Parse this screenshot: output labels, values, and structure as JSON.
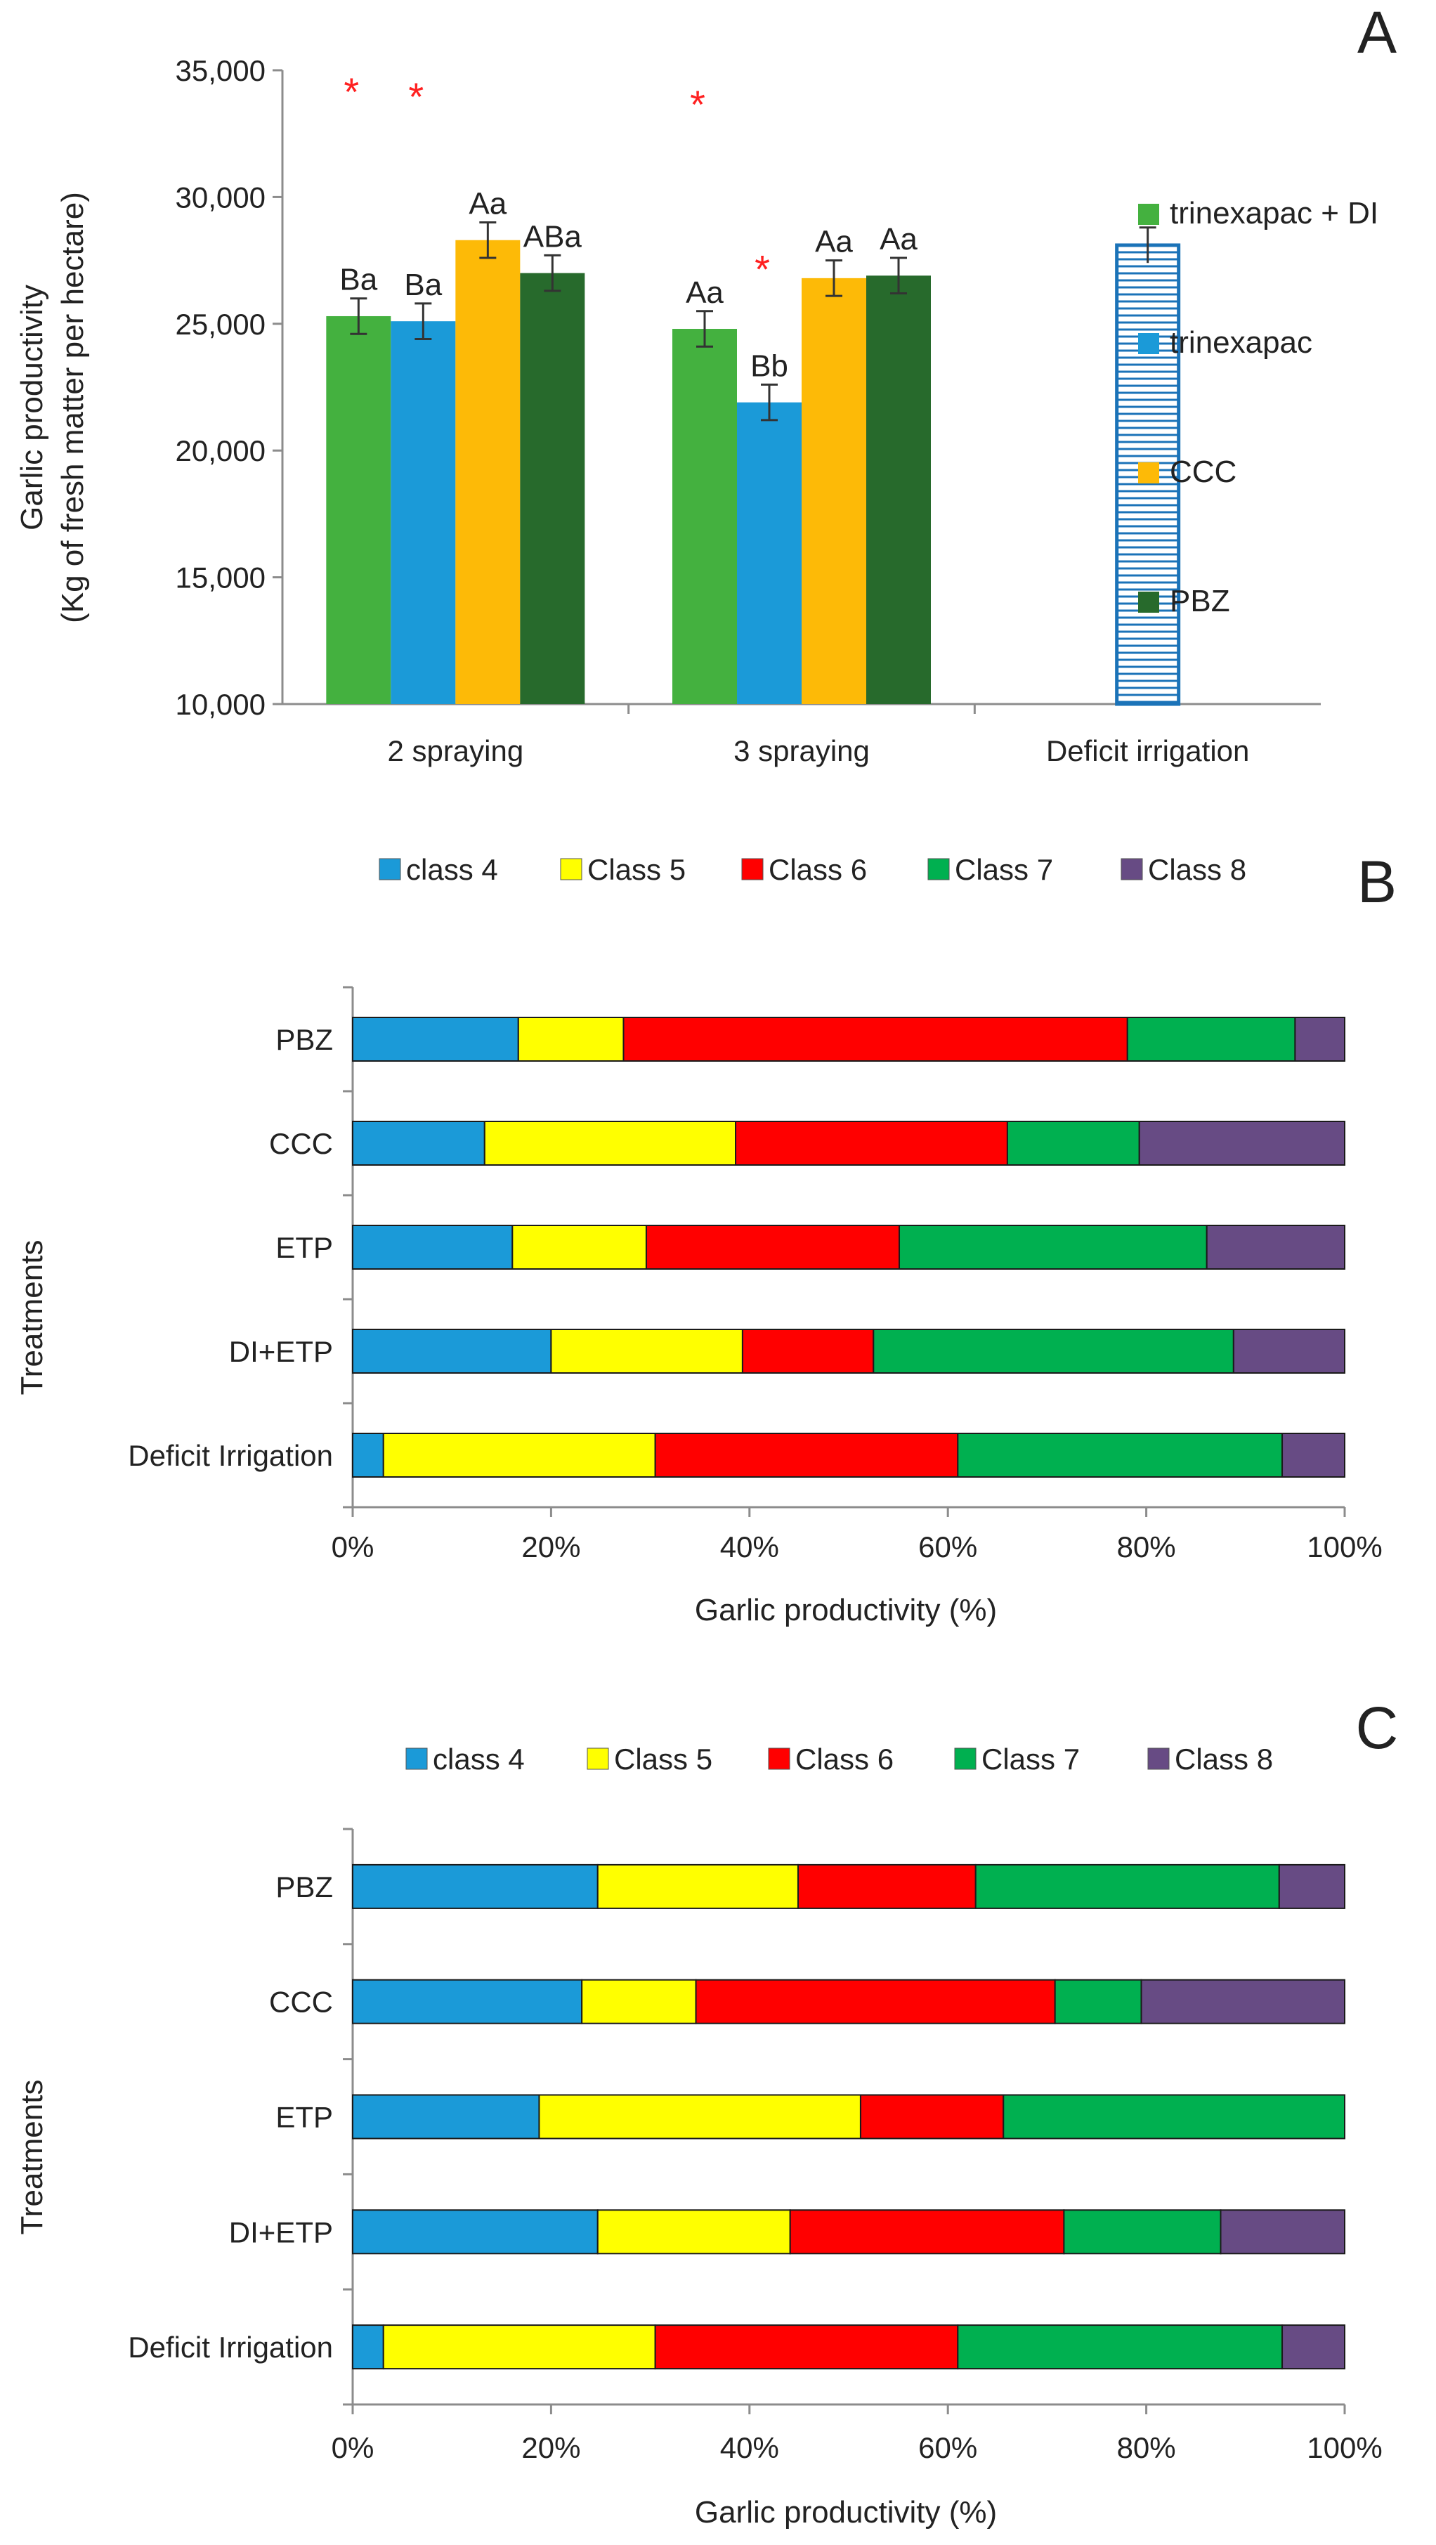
{
  "chart_data": [
    {
      "panel": "A",
      "type": "bar",
      "ylabel": "Garlic productivity",
      "ylabel2": "(Kg of fresh matter per hectare)",
      "ylim": [
        10000,
        35000
      ],
      "yticks": [
        "10,000",
        "15,000",
        "20,000",
        "25,000",
        "30,000",
        "35,000"
      ],
      "categories": [
        "2 spraying",
        "3 spraying",
        "Deficit irrigation"
      ],
      "legend_position": "right",
      "series": [
        {
          "name": "trinexapac + DI",
          "color": "#44B13F",
          "values": [
            25300,
            24800,
            null
          ],
          "errors": [
            700,
            700,
            null
          ],
          "letters": [
            "Ba",
            "Aa",
            ""
          ],
          "star": [
            true,
            true,
            false
          ]
        },
        {
          "name": "trinexapac",
          "color": "#1B9AD8",
          "values": [
            25100,
            21900,
            null
          ],
          "errors": [
            700,
            700,
            null
          ],
          "letters": [
            "Ba",
            "Bb",
            ""
          ],
          "star": [
            true,
            true,
            false
          ]
        },
        {
          "name": "CCC",
          "color": "#FDBA07",
          "values": [
            28300,
            26800,
            null
          ],
          "errors": [
            700,
            700,
            null
          ],
          "letters": [
            "Aa",
            "Aa",
            ""
          ],
          "star": [
            false,
            false,
            false
          ]
        },
        {
          "name": "PBZ",
          "color": "#276A2C",
          "values": [
            27000,
            26900,
            null
          ],
          "errors": [
            700,
            700,
            null
          ],
          "letters": [
            "ABa",
            "Aa",
            ""
          ],
          "star": [
            false,
            false,
            false
          ]
        }
      ],
      "deficit": {
        "value": 28100,
        "error": 700,
        "color": "#1B73B8"
      },
      "star_symbol": "*"
    },
    {
      "panel": "B",
      "type": "bar",
      "orientation": "horizontal",
      "stacked": "percent",
      "xlabel": "Garlic productivity (%)",
      "ylabel": "Treatments",
      "xticks": [
        "0%",
        "20%",
        "40%",
        "60%",
        "80%",
        "100%"
      ],
      "legend_position": "top",
      "categories": [
        "PBZ",
        "CCC",
        "ETP",
        "DI+ETP",
        "Deficit Irrigation"
      ],
      "series": [
        {
          "name": "class 4",
          "color": "#1B9AD8",
          "values": [
            16.7,
            13.3,
            16.1,
            20.0,
            3.1
          ]
        },
        {
          "name": "Class 5",
          "color": "#FFFF00",
          "values": [
            10.6,
            25.3,
            13.5,
            19.3,
            27.4
          ]
        },
        {
          "name": "Class 6",
          "color": "#FF0000",
          "values": [
            50.8,
            27.4,
            25.5,
            13.2,
            30.5
          ]
        },
        {
          "name": "Class 7",
          "color": "#00B050",
          "values": [
            16.9,
            13.3,
            31.0,
            36.3,
            32.7
          ]
        },
        {
          "name": "Class 8",
          "color": "#674B84",
          "values": [
            5.0,
            20.7,
            13.9,
            11.2,
            6.3
          ]
        }
      ]
    },
    {
      "panel": "C",
      "type": "bar",
      "orientation": "horizontal",
      "stacked": "percent",
      "xlabel": "Garlic productivity (%)",
      "ylabel": "Treatments",
      "xticks": [
        "0%",
        "20%",
        "40%",
        "60%",
        "80%",
        "100%"
      ],
      "legend_position": "top",
      "categories": [
        "PBZ",
        "CCC",
        "ETP",
        "DI+ETP",
        "Deficit Irrigation"
      ],
      "series": [
        {
          "name": "class 4",
          "color": "#1B9AD8",
          "values": [
            24.7,
            23.1,
            18.8,
            24.7,
            3.1
          ]
        },
        {
          "name": "Class 5",
          "color": "#FFFF00",
          "values": [
            20.2,
            11.5,
            32.4,
            19.4,
            27.4
          ]
        },
        {
          "name": "Class 6",
          "color": "#FF0000",
          "values": [
            17.9,
            36.2,
            14.4,
            27.6,
            30.5
          ]
        },
        {
          "name": "Class 7",
          "color": "#00B050",
          "values": [
            30.6,
            8.7,
            34.4,
            15.8,
            32.7
          ]
        },
        {
          "name": "Class 8",
          "color": "#674B84",
          "values": [
            6.6,
            20.5,
            0.0,
            12.5,
            6.3
          ]
        }
      ]
    }
  ]
}
